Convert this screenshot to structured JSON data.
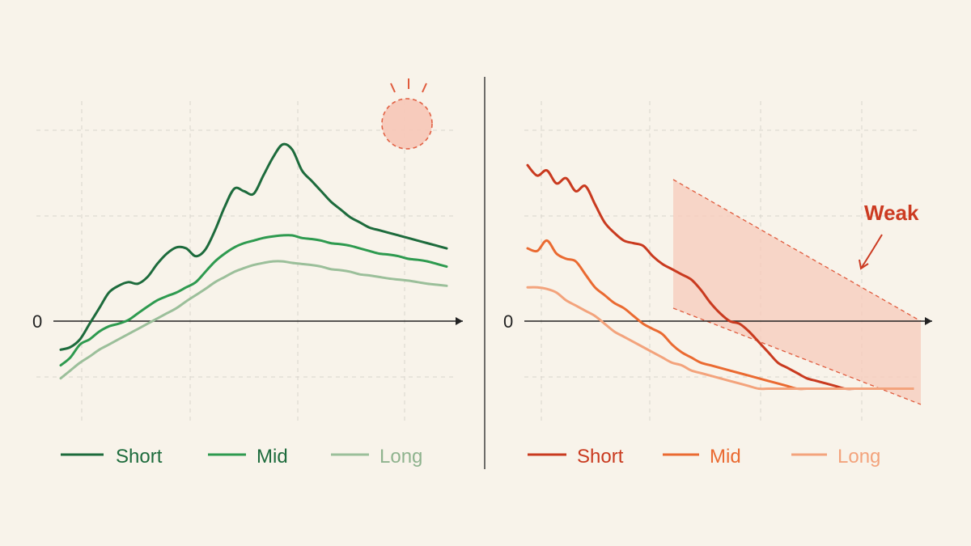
{
  "colors": {
    "background": "#f8f3ea",
    "grid": "#d9d4cc",
    "axis": "#222222",
    "divider": "#333333",
    "highlight": "#e05a3c",
    "band_fill": "#f7cbbb",
    "weak_text": "#cc3b22"
  },
  "chart_data": [
    {
      "type": "line",
      "panel": "left",
      "zero_label": "0",
      "x": [
        0,
        0.5,
        1,
        1.5,
        2,
        2.5,
        3,
        3.5,
        4,
        4.5,
        5,
        5.5,
        6,
        6.5,
        7,
        7.5,
        8,
        8.5,
        9,
        9.5,
        10,
        10.5,
        11,
        11.5,
        12,
        12.5,
        13,
        13.5,
        14,
        14.5,
        15,
        15.5,
        16,
        16.5,
        17,
        17.5,
        18,
        18.5,
        19,
        19.5,
        20
      ],
      "xlim": [
        0,
        20
      ],
      "ylim": [
        -1.3,
        4.0
      ],
      "grid": true,
      "legend_position": "bottom",
      "series": [
        {
          "name": "Short",
          "color": "#1d6b3c",
          "values": [
            -0.55,
            -0.5,
            -0.35,
            -0.05,
            0.25,
            0.55,
            0.68,
            0.75,
            0.72,
            0.85,
            1.1,
            1.3,
            1.42,
            1.4,
            1.25,
            1.38,
            1.75,
            2.2,
            2.55,
            2.5,
            2.45,
            2.8,
            3.15,
            3.4,
            3.3,
            2.9,
            2.7,
            2.5,
            2.3,
            2.15,
            2.0,
            1.9,
            1.8,
            1.75,
            1.7,
            1.65,
            1.6,
            1.55,
            1.5,
            1.45,
            1.4
          ]
        },
        {
          "name": "Mid",
          "color": "#2e9a4f",
          "values": [
            -0.85,
            -0.7,
            -0.45,
            -0.35,
            -0.2,
            -0.1,
            -0.05,
            0.02,
            0.15,
            0.28,
            0.4,
            0.48,
            0.55,
            0.65,
            0.75,
            0.95,
            1.15,
            1.3,
            1.42,
            1.5,
            1.55,
            1.6,
            1.63,
            1.65,
            1.65,
            1.6,
            1.58,
            1.55,
            1.5,
            1.48,
            1.45,
            1.4,
            1.35,
            1.3,
            1.28,
            1.25,
            1.2,
            1.18,
            1.15,
            1.1,
            1.05
          ]
        },
        {
          "name": "Long",
          "color": "#9bbf9a",
          "values": [
            -1.1,
            -0.95,
            -0.8,
            -0.68,
            -0.55,
            -0.45,
            -0.35,
            -0.25,
            -0.15,
            -0.05,
            0.05,
            0.15,
            0.25,
            0.38,
            0.5,
            0.62,
            0.75,
            0.85,
            0.95,
            1.02,
            1.08,
            1.12,
            1.15,
            1.15,
            1.12,
            1.1,
            1.08,
            1.05,
            1.0,
            0.98,
            0.95,
            0.9,
            0.88,
            0.85,
            0.82,
            0.8,
            0.78,
            0.75,
            0.72,
            0.7,
            0.68
          ]
        }
      ],
      "highlight_x": 8.45
    },
    {
      "type": "line",
      "panel": "right",
      "zero_label": "0",
      "annotation": "Weak",
      "x": [
        0,
        0.5,
        1,
        1.5,
        2,
        2.5,
        3,
        3.5,
        4,
        4.5,
        5,
        5.5,
        6,
        6.5,
        7,
        7.5,
        8,
        8.5,
        9,
        9.5,
        10,
        10.5,
        11,
        11.5,
        12,
        12.5,
        13,
        13.5,
        14,
        14.5,
        15,
        15.5,
        16,
        16.5,
        17,
        17.5,
        18,
        18.5,
        19,
        19.5,
        20
      ],
      "xlim": [
        0,
        20
      ],
      "ylim": [
        -1.3,
        4.0
      ],
      "grid": true,
      "legend_position": "bottom",
      "series": [
        {
          "name": "Short",
          "color": "#c93a1f",
          "values": [
            3.0,
            2.8,
            2.9,
            2.65,
            2.75,
            2.5,
            2.6,
            2.25,
            1.9,
            1.7,
            1.55,
            1.5,
            1.45,
            1.25,
            1.1,
            1.0,
            0.9,
            0.8,
            0.6,
            0.35,
            0.15,
            0.0,
            -0.05,
            -0.2,
            -0.4,
            -0.6,
            -0.8,
            -0.9,
            -1.0,
            -1.1,
            -1.15,
            -1.2,
            -1.25,
            -1.3,
            -1.3,
            -1.3,
            -1.3,
            -1.3,
            -1.3,
            -1.3,
            -1.3
          ]
        },
        {
          "name": "Mid",
          "color": "#ea6a31",
          "values": [
            1.4,
            1.35,
            1.55,
            1.3,
            1.2,
            1.15,
            0.9,
            0.65,
            0.5,
            0.35,
            0.25,
            0.1,
            -0.05,
            -0.15,
            -0.25,
            -0.45,
            -0.6,
            -0.7,
            -0.8,
            -0.85,
            -0.9,
            -0.95,
            -1.0,
            -1.05,
            -1.1,
            -1.15,
            -1.2,
            -1.25,
            -1.3,
            -1.3,
            -1.3,
            -1.3,
            -1.3,
            -1.3,
            -1.3,
            -1.3,
            -1.3,
            -1.3,
            -1.3,
            -1.3,
            -1.3
          ]
        },
        {
          "name": "Long",
          "color": "#f3a37c",
          "values": [
            0.65,
            0.65,
            0.62,
            0.55,
            0.4,
            0.3,
            0.2,
            0.1,
            -0.05,
            -0.2,
            -0.3,
            -0.4,
            -0.5,
            -0.6,
            -0.7,
            -0.8,
            -0.85,
            -0.95,
            -1.0,
            -1.05,
            -1.1,
            -1.15,
            -1.2,
            -1.25,
            -1.3,
            -1.3,
            -1.3,
            -1.3,
            -1.3,
            -1.3,
            -1.3,
            -1.3,
            -1.3,
            -1.3,
            -1.3,
            -1.3,
            -1.3,
            -1.3,
            -1.3,
            -1.3,
            -1.3
          ]
        }
      ],
      "band_x": [
        7.5,
        20
      ]
    }
  ]
}
